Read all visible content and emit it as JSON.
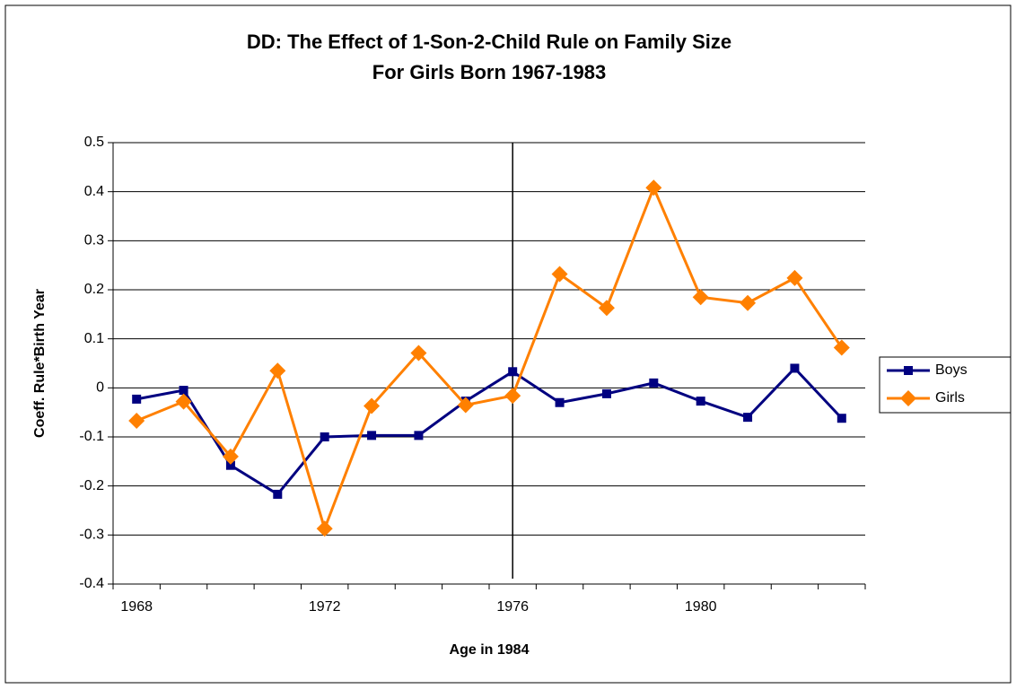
{
  "chart_data": {
    "type": "line",
    "title": [
      "DD: The Effect of 1-Son-2-Child Rule on Family Size",
      "For Girls Born 1967-1983"
    ],
    "x_label": "Age in 1984",
    "y_label": "Coeff. Rule*Birth Year",
    "categories": [
      "1968",
      null,
      null,
      null,
      "1972",
      null,
      null,
      null,
      "1976",
      null,
      null,
      null,
      "1980",
      null,
      null,
      null
    ],
    "series": [
      {
        "name": "Boys",
        "color": "#000080",
        "marker": "square",
        "values": [
          -0.023,
          -0.005,
          -0.158,
          -0.217,
          -0.1,
          -0.097,
          -0.097,
          -0.027,
          0.033,
          -0.03,
          -0.012,
          0.01,
          -0.027,
          -0.06,
          0.04,
          -0.062
        ]
      },
      {
        "name": "Girls",
        "color": "#ff8000",
        "marker": "diamond",
        "values": [
          -0.067,
          -0.028,
          -0.14,
          0.035,
          -0.287,
          -0.037,
          0.071,
          -0.035,
          -0.016,
          0.232,
          0.163,
          0.408,
          0.185,
          0.173,
          0.224,
          0.082
        ]
      }
    ],
    "reference_line": {
      "category": "1976"
    },
    "ylim": [
      -0.4,
      0.5
    ],
    "yticks": [
      -0.4,
      -0.3,
      -0.2,
      -0.1,
      0,
      0.1,
      0.2,
      0.3,
      0.4,
      0.5
    ],
    "grid": true,
    "legend": "right"
  }
}
